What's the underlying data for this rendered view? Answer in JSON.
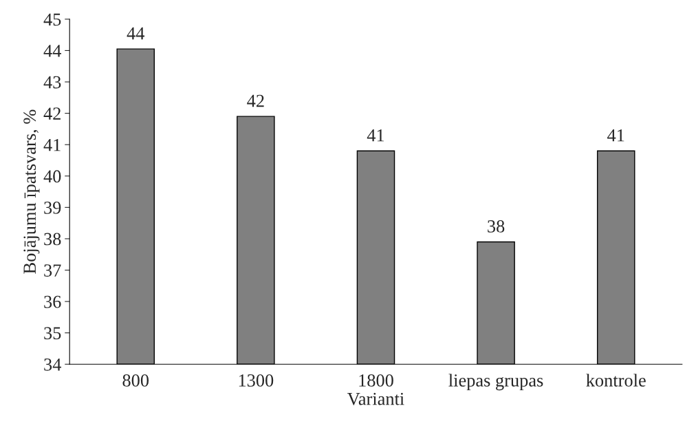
{
  "chart_data": {
    "type": "bar",
    "xlabel": "Varianti",
    "ylabel": "Bojājumu īpatsvars, %",
    "categories": [
      "800",
      "1300",
      "1800",
      "liepas grupas",
      "kontrole"
    ],
    "values": [
      44.05,
      41.9,
      40.8,
      37.9,
      40.8
    ],
    "value_labels": [
      "44",
      "42",
      "41",
      "38",
      "41"
    ],
    "color": "#808080",
    "ylim": [
      34,
      45
    ],
    "yticks": [
      34,
      35,
      36,
      37,
      38,
      39,
      40,
      41,
      42,
      43,
      44,
      45
    ],
    "grid": false,
    "legend": false
  }
}
